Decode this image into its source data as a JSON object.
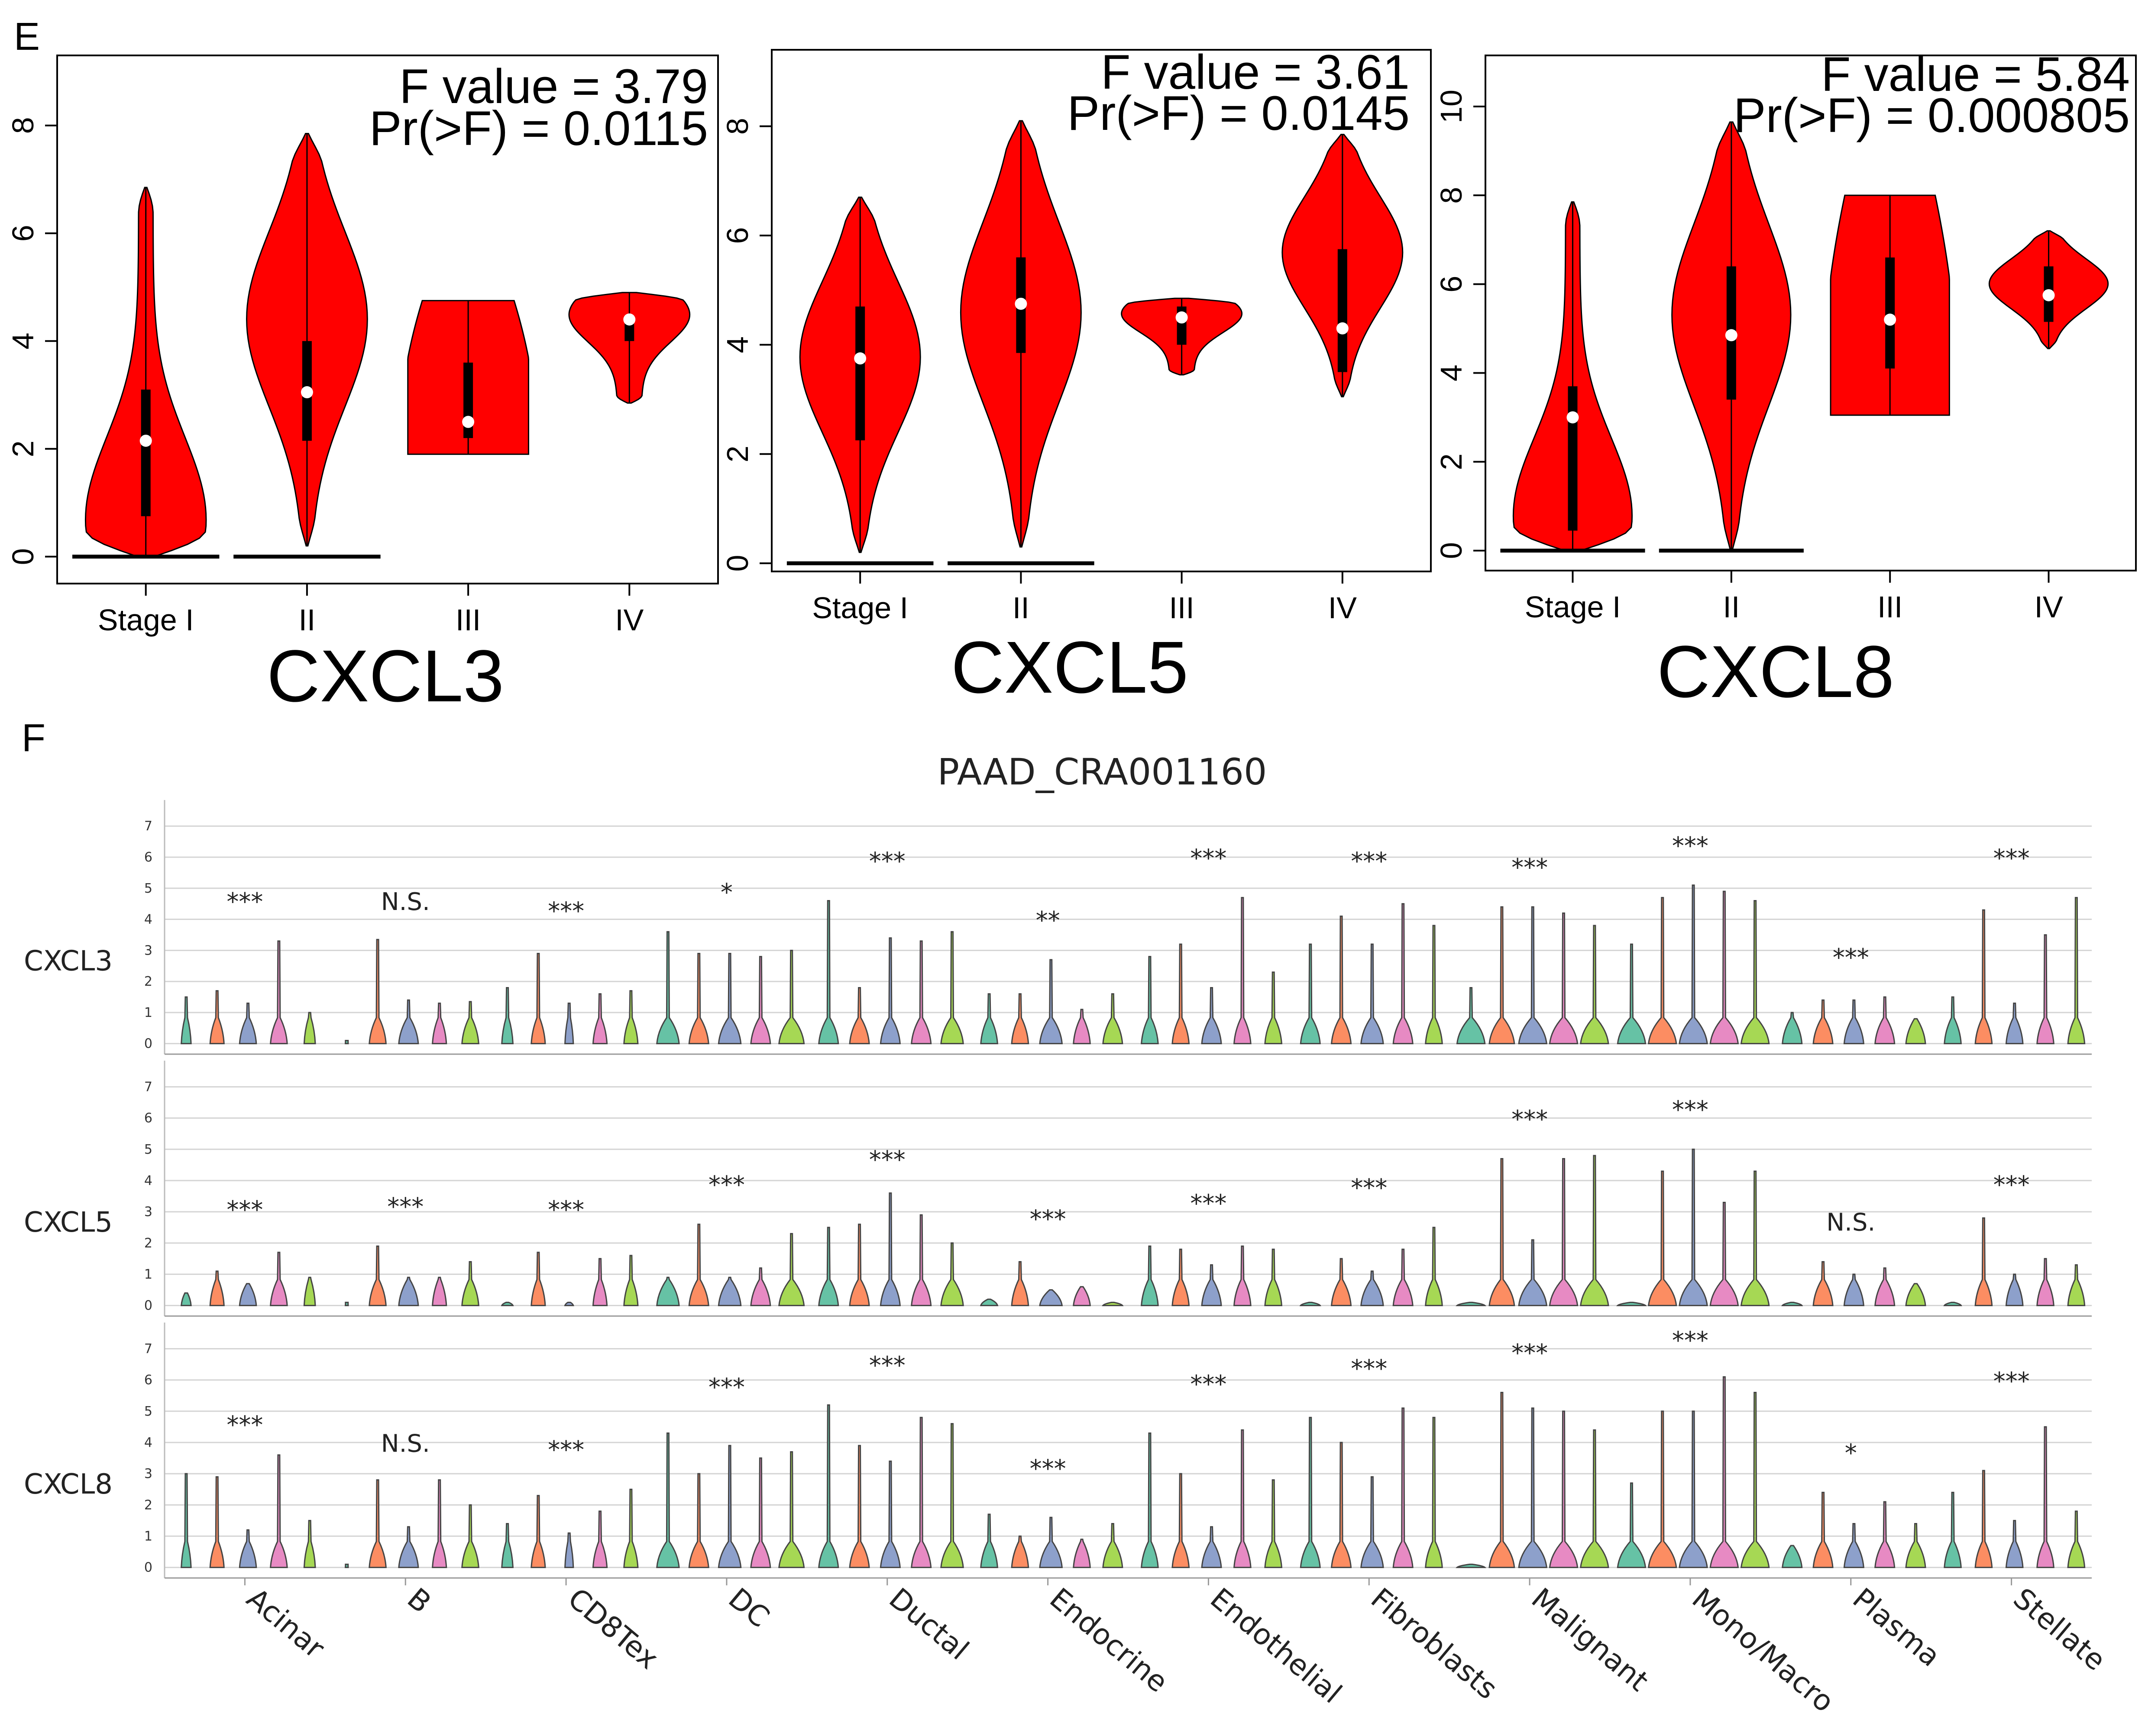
{
  "panel_letters": {
    "e": "E",
    "f": "F"
  },
  "colors": {
    "violin_fill": "#ff0000",
    "outline": "#000000",
    "grid": "#d4d4d4",
    "median_dot": "#ffffff",
    "group_palette": [
      "#66c2a5",
      "#fc8d62",
      "#8da0cb",
      "#e78ac3",
      "#a6d854"
    ]
  },
  "chart_data": [
    {
      "type": "violin",
      "gene": "CXCL3",
      "stat_f": "F value = 3.79",
      "stat_p": "Pr(>F) = 0.0115",
      "categories": [
        "Stage I",
        "II",
        "III",
        "IV"
      ],
      "ylim": [
        -0.5,
        9.3
      ],
      "yticks": [
        0,
        2,
        4,
        6,
        8
      ],
      "groups": [
        {
          "min": 0,
          "max": 6.85,
          "q1": 0.75,
          "median": 2.15,
          "q3": 3.1,
          "zero_line": true,
          "shape": "bottom",
          "width": 0.78
        },
        {
          "min": 0.2,
          "max": 7.85,
          "q1": 2.15,
          "median": 3.05,
          "q3": 4.0,
          "zero_line": true,
          "shape": "mid",
          "width": 0.78
        },
        {
          "min": 1.9,
          "max": 4.75,
          "q1": 2.2,
          "median": 2.5,
          "q3": 3.6,
          "zero_line": false,
          "shape": "flat",
          "width": 0.78
        },
        {
          "min": 2.85,
          "max": 4.9,
          "q1": 4.0,
          "median": 4.4,
          "q3": 4.45,
          "zero_line": false,
          "shape": "top",
          "width": 0.78
        }
      ]
    },
    {
      "type": "violin",
      "gene": "CXCL5",
      "stat_f": "F value = 3.61",
      "stat_p": "Pr(>F) = 0.0145",
      "categories": [
        "Stage I",
        "II",
        "III",
        "IV"
      ],
      "ylim": [
        -0.15,
        9.4
      ],
      "yticks": [
        0,
        2,
        4,
        6,
        8
      ],
      "groups": [
        {
          "min": 0.2,
          "max": 6.7,
          "q1": 2.25,
          "median": 3.75,
          "q3": 4.7,
          "zero_line": true,
          "shape": "mid",
          "width": 0.78
        },
        {
          "min": 0.3,
          "max": 8.1,
          "q1": 3.85,
          "median": 4.75,
          "q3": 5.6,
          "zero_line": true,
          "shape": "mid",
          "width": 0.78
        },
        {
          "min": 3.45,
          "max": 4.85,
          "q1": 4.0,
          "median": 4.5,
          "q3": 4.7,
          "zero_line": false,
          "shape": "top",
          "width": 0.78
        },
        {
          "min": 3.05,
          "max": 7.85,
          "q1": 3.5,
          "median": 4.3,
          "q3": 5.75,
          "zero_line": false,
          "shape": "mid",
          "width": 0.78
        }
      ]
    },
    {
      "type": "violin",
      "gene": "CXCL8",
      "stat_f": "F value = 5.84",
      "stat_p": "Pr(>F) = 0.000805",
      "categories": [
        "Stage I",
        "II",
        "III",
        "IV"
      ],
      "ylim": [
        -0.45,
        11.15
      ],
      "yticks": [
        0,
        2,
        4,
        6,
        8,
        10
      ],
      "groups": [
        {
          "min": 0,
          "max": 7.85,
          "q1": 0.45,
          "median": 3.0,
          "q3": 3.7,
          "zero_line": true,
          "shape": "bottom",
          "width": 0.78
        },
        {
          "min": 0,
          "max": 9.65,
          "q1": 3.4,
          "median": 4.85,
          "q3": 6.4,
          "zero_line": true,
          "shape": "mid",
          "width": 0.78
        },
        {
          "min": 3.05,
          "max": 8.0,
          "q1": 4.1,
          "median": 5.2,
          "q3": 6.6,
          "zero_line": false,
          "shape": "flat",
          "width": 0.78
        },
        {
          "min": 4.55,
          "max": 7.2,
          "q1": 5.15,
          "median": 5.75,
          "q3": 6.4,
          "zero_line": false,
          "shape": "mid",
          "width": 0.78
        }
      ]
    },
    {
      "type": "violin_grid",
      "title": "PAAD_CRA001160",
      "rows": [
        "CXCL3",
        "CXCL5",
        "CXCL8"
      ],
      "ylim": [
        -0.2,
        7.7
      ],
      "yticks": [
        0,
        1,
        2,
        3,
        4,
        5,
        6,
        7
      ],
      "cell_types": [
        "Acinar",
        "B",
        "CD8Tex",
        "DC",
        "Ductal",
        "Endocrine",
        "Endothelial",
        "Fibroblasts",
        "Malignant",
        "Mono/Macro",
        "Plasma",
        "Stellate"
      ],
      "significance": [
        [
          "***",
          "N.S.",
          "***",
          "*",
          "***",
          "**",
          "***",
          "***",
          "***",
          "***",
          "***",
          "***"
        ],
        [
          "***",
          "***",
          "***",
          "***",
          "***",
          "***",
          "***",
          "***",
          "***",
          "***",
          "N.S.",
          "***"
        ],
        [
          "***",
          "N.S.",
          "***",
          "***",
          "***",
          "***",
          "***",
          "***",
          "***",
          "***",
          "*",
          "***"
        ]
      ],
      "sig_height": [
        [
          4.3,
          4.3,
          4.0,
          4.6,
          5.6,
          3.7,
          5.7,
          5.6,
          5.4,
          6.1,
          2.5,
          5.7
        ],
        [
          2.8,
          2.9,
          2.8,
          3.6,
          4.4,
          2.5,
          3.0,
          3.5,
          5.7,
          6.0,
          2.4,
          3.6
        ],
        [
          4.3,
          3.7,
          3.5,
          5.5,
          6.2,
          2.9,
          5.6,
          6.1,
          6.6,
          7.0,
          3.4,
          5.7
        ]
      ],
      "max_values": [
        [
          [
            1.5,
            1.7,
            1.3,
            3.3,
            1.0
          ],
          [
            0.1,
            3.35,
            1.4,
            1.3,
            1.35
          ],
          [
            1.8,
            2.9,
            1.3,
            1.6,
            1.7
          ],
          [
            3.6,
            2.9,
            2.9,
            2.8,
            3.0
          ],
          [
            4.6,
            1.8,
            3.4,
            3.3,
            3.6
          ],
          [
            1.6,
            1.6,
            2.7,
            1.1,
            1.6
          ],
          [
            2.8,
            3.2,
            1.8,
            4.7,
            2.3
          ],
          [
            3.2,
            4.1,
            3.2,
            4.5,
            3.8
          ],
          [
            1.8,
            4.4,
            4.4,
            4.2,
            3.8
          ],
          [
            3.2,
            4.7,
            5.1,
            4.9,
            4.6
          ],
          [
            1.0,
            1.4,
            1.4,
            1.5,
            0.8
          ],
          [
            1.5,
            4.3,
            1.3,
            3.5,
            4.7
          ]
        ],
        [
          [
            0.4,
            1.1,
            0.7,
            1.7,
            0.9
          ],
          [
            0.1,
            1.9,
            0.9,
            0.9,
            1.4
          ],
          [
            0.1,
            1.7,
            0.1,
            1.5,
            1.6
          ],
          [
            0.9,
            2.6,
            0.9,
            1.2,
            2.3
          ],
          [
            2.5,
            2.6,
            3.6,
            2.9,
            2.0
          ],
          [
            0.2,
            1.4,
            0.5,
            0.6,
            0.1
          ],
          [
            1.9,
            1.8,
            1.3,
            1.9,
            1.8
          ],
          [
            0.1,
            1.5,
            1.1,
            1.8,
            2.5
          ],
          [
            0.1,
            4.7,
            2.1,
            4.7,
            4.8
          ],
          [
            0.1,
            4.3,
            5.0,
            3.3,
            4.3
          ],
          [
            0.1,
            1.4,
            1.0,
            1.2,
            0.7
          ],
          [
            0.1,
            2.8,
            1.0,
            1.5,
            1.3
          ]
        ],
        [
          [
            3.0,
            2.9,
            1.2,
            3.6,
            1.5
          ],
          [
            0.1,
            2.8,
            1.3,
            2.8,
            2.0
          ],
          [
            1.4,
            2.3,
            1.1,
            1.8,
            2.5
          ],
          [
            4.3,
            3.0,
            3.9,
            3.5,
            3.7
          ],
          [
            5.2,
            3.9,
            3.4,
            4.8,
            4.6
          ],
          [
            1.7,
            1.0,
            1.6,
            0.9,
            1.4
          ],
          [
            4.3,
            3.0,
            1.3,
            4.4,
            2.8
          ],
          [
            4.8,
            4.0,
            2.9,
            5.1,
            4.8
          ],
          [
            0.1,
            5.6,
            5.1,
            5.0,
            4.4
          ],
          [
            2.7,
            5.0,
            5.0,
            6.1,
            5.6
          ],
          [
            0.7,
            2.4,
            1.4,
            2.1,
            1.4
          ],
          [
            2.4,
            3.1,
            1.5,
            4.5,
            1.8
          ]
        ]
      ],
      "body_widths": [
        [
          0.35,
          0.5,
          0.6,
          0.6,
          0.4
        ],
        [
          0.1,
          0.6,
          0.7,
          0.5,
          0.6
        ],
        [
          0.4,
          0.5,
          0.3,
          0.5,
          0.5
        ],
        [
          0.8,
          0.7,
          0.8,
          0.7,
          0.9
        ],
        [
          0.7,
          0.7,
          0.7,
          0.7,
          0.8
        ],
        [
          0.6,
          0.6,
          0.8,
          0.6,
          0.7
        ],
        [
          0.6,
          0.6,
          0.7,
          0.6,
          0.6
        ],
        [
          0.7,
          0.7,
          0.8,
          0.7,
          0.6
        ],
        [
          1.0,
          0.9,
          1.0,
          1.0,
          1.0
        ],
        [
          1.0,
          1.0,
          1.0,
          1.0,
          1.0
        ],
        [
          0.7,
          0.7,
          0.7,
          0.7,
          0.7
        ],
        [
          0.6,
          0.6,
          0.6,
          0.6,
          0.6
        ]
      ]
    }
  ]
}
